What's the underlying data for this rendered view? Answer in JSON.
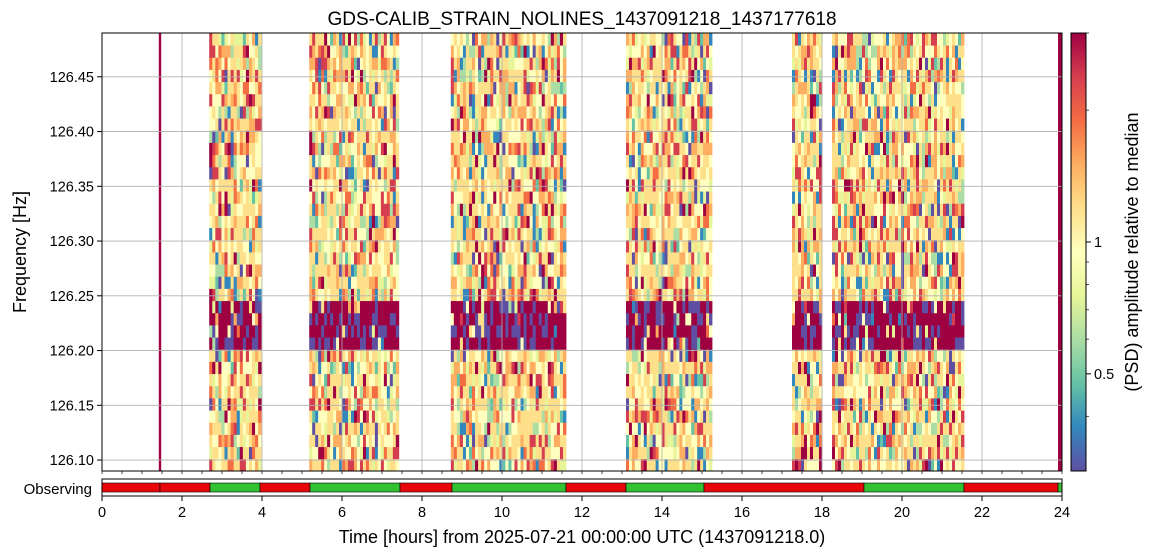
{
  "chart_data": {
    "type": "heatmap",
    "title": "GDS-CALIB_STRAIN_NOLINES_1437091218_1437177618",
    "xlabel": "Time [hours] from 2025-07-21 00:00:00 UTC (1437091218.0)",
    "ylabel": "Frequency [Hz]",
    "colorbar_label": "(PSD) amplitude relative to median",
    "xlim": [
      0,
      24
    ],
    "ylim": [
      126.09,
      126.49
    ],
    "x_ticks": [
      "0",
      "2",
      "4",
      "6",
      "8",
      "10",
      "12",
      "14",
      "16",
      "18",
      "20",
      "22",
      "24"
    ],
    "y_ticks": [
      "126.10",
      "126.15",
      "126.20",
      "126.25",
      "126.30",
      "126.35",
      "126.40",
      "126.45"
    ],
    "colorbar_ticks": [
      "0.5",
      "1"
    ],
    "colorbar_range": [
      0.3,
      3.0
    ],
    "colormap": [
      "#5e4fa2",
      "#3288bd",
      "#66c2a5",
      "#abdda4",
      "#e6f598",
      "#ffffbf",
      "#fee08b",
      "#fdae61",
      "#f46d43",
      "#d53e4f",
      "#9e0142"
    ],
    "grid": true,
    "data_segments_hours": [
      {
        "start": 1.42,
        "end": 1.47,
        "line": "none"
      },
      {
        "start": 2.68,
        "end": 3.98,
        "line": "low"
      },
      {
        "start": 5.18,
        "end": 7.42,
        "line": "mid"
      },
      {
        "start": 8.72,
        "end": 11.6,
        "line": "high"
      },
      {
        "start": 13.1,
        "end": 15.25,
        "line": "low"
      },
      {
        "start": 17.25,
        "end": 18.0,
        "line": "mid"
      },
      {
        "start": 18.25,
        "end": 21.55,
        "line": "high"
      },
      {
        "start": 23.9,
        "end": 24.0,
        "line": "none"
      }
    ],
    "highlight_band_hz": [
      126.2,
      126.25
    ],
    "state_track": {
      "label": "Observing",
      "on_color": "#33c133",
      "off_color": "#e8080a",
      "segments": [
        {
          "start": 0,
          "end": 1.45,
          "state": "off"
        },
        {
          "start": 1.45,
          "end": 2.7,
          "state": "off"
        },
        {
          "start": 2.7,
          "end": 3.95,
          "state": "on"
        },
        {
          "start": 3.95,
          "end": 5.2,
          "state": "off"
        },
        {
          "start": 5.2,
          "end": 7.45,
          "state": "on"
        },
        {
          "start": 7.45,
          "end": 8.75,
          "state": "off"
        },
        {
          "start": 8.75,
          "end": 11.6,
          "state": "on"
        },
        {
          "start": 11.6,
          "end": 13.1,
          "state": "off"
        },
        {
          "start": 13.1,
          "end": 15.05,
          "state": "on"
        },
        {
          "start": 15.05,
          "end": 19.05,
          "state": "off"
        },
        {
          "start": 19.05,
          "end": 21.55,
          "state": "on"
        },
        {
          "start": 21.55,
          "end": 23.9,
          "state": "off"
        },
        {
          "start": 23.9,
          "end": 24,
          "state": "on"
        }
      ]
    }
  }
}
